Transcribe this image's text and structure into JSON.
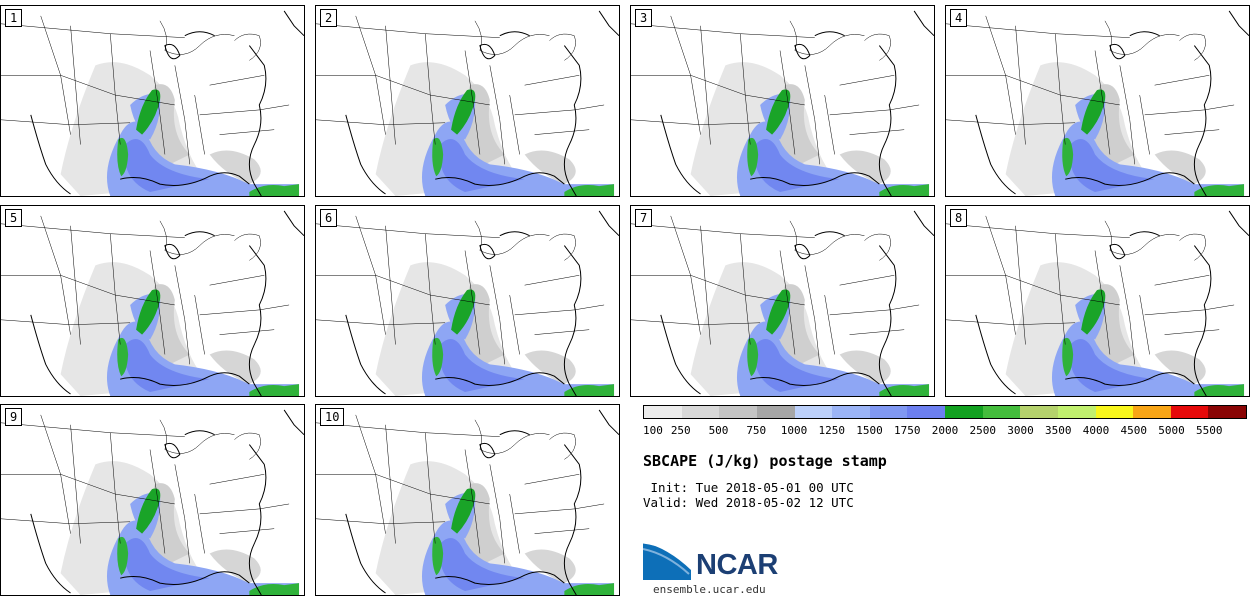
{
  "panels": [
    {
      "label": "1",
      "member": 1
    },
    {
      "label": "2",
      "member": 2
    },
    {
      "label": "3",
      "member": 3
    },
    {
      "label": "4",
      "member": 4
    },
    {
      "label": "5",
      "member": 5
    },
    {
      "label": "6",
      "member": 6
    },
    {
      "label": "7",
      "member": 7
    },
    {
      "label": "8",
      "member": 8
    },
    {
      "label": "9",
      "member": 9
    },
    {
      "label": "10",
      "member": 10
    }
  ],
  "colorbar": {
    "colors": [
      "#ececec",
      "#d8d8d8",
      "#c4c4c4",
      "#a6a6a6",
      "#bcd0fa",
      "#9bb4f6",
      "#8098f2",
      "#6c7ff0",
      "#12a120",
      "#44bd3c",
      "#b5d26c",
      "#c1f06e",
      "#f8f61c",
      "#f8a516",
      "#e60a0a",
      "#8a0505"
    ],
    "tick_labels": [
      "100",
      "250",
      "500",
      "750",
      "1000",
      "1250",
      "1500",
      "1750",
      "2000",
      "2500",
      "3000",
      "3500",
      "4000",
      "4500",
      "5000",
      "5500"
    ]
  },
  "title": "SBCAPE (J/kg) postage stamp",
  "init_text": " Init: Tue 2018-05-01 00 UTC",
  "valid_text": "Valid: Wed 2018-05-02 12 UTC",
  "logo": {
    "text": "NCAR",
    "colors": {
      "swoosh": "#0d6fb8",
      "text": "#1c3f74"
    }
  },
  "site": "ensemble.ucar.edu"
}
